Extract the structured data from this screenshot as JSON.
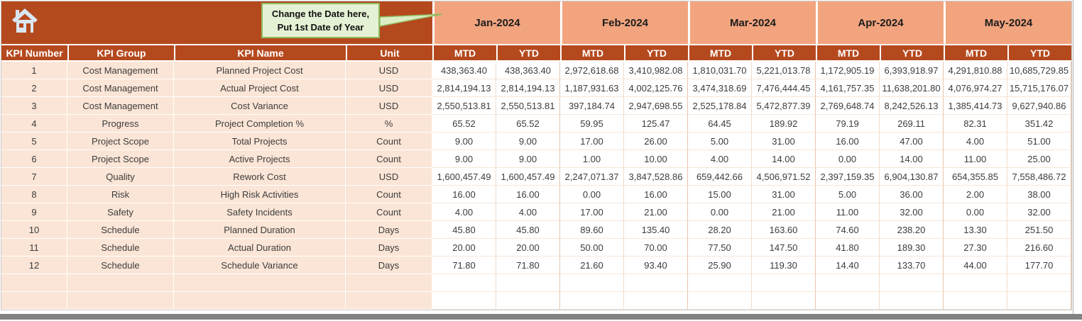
{
  "colors": {
    "header_rust": "#B5491E",
    "month_salmon": "#F2A47E",
    "row_peach": "#FBE5D6",
    "callout_bg": "#E5F1D4",
    "callout_border": "#8FBB60",
    "chrome_gray": "#828282"
  },
  "callout": {
    "line1": "Change the Date here,",
    "line2": "Put 1st Date of Year"
  },
  "table": {
    "left_headers": [
      "KPI Number",
      "KPI Group",
      "KPI Name",
      "Unit"
    ],
    "months": [
      "Jan-2024",
      "Feb-2024",
      "Mar-2024",
      "Apr-2024",
      "May-2024"
    ],
    "sub_headers": [
      "MTD",
      "YTD"
    ],
    "empty_row_count": 2,
    "rows": [
      {
        "number": "1",
        "group": "Cost Management",
        "name": "Planned Project Cost",
        "unit": "USD",
        "values": [
          "438,363.40",
          "438,363.40",
          "2,972,618.68",
          "3,410,982.08",
          "1,810,031.70",
          "5,221,013.78",
          "1,172,905.19",
          "6,393,918.97",
          "4,291,810.88",
          "10,685,729.85"
        ]
      },
      {
        "number": "2",
        "group": "Cost Management",
        "name": "Actual Project Cost",
        "unit": "USD",
        "values": [
          "2,814,194.13",
          "2,814,194.13",
          "1,187,931.63",
          "4,002,125.76",
          "3,474,318.69",
          "7,476,444.45",
          "4,161,757.35",
          "11,638,201.80",
          "4,076,974.27",
          "15,715,176.07"
        ]
      },
      {
        "number": "3",
        "group": "Cost Management",
        "name": "Cost Variance",
        "unit": "USD",
        "values": [
          "2,550,513.81",
          "2,550,513.81",
          "397,184.74",
          "2,947,698.55",
          "2,525,178.84",
          "5,472,877.39",
          "2,769,648.74",
          "8,242,526.13",
          "1,385,414.73",
          "9,627,940.86"
        ]
      },
      {
        "number": "4",
        "group": "Progress",
        "name": "Project Completion %",
        "unit": "%",
        "values": [
          "65.52",
          "65.52",
          "59.95",
          "125.47",
          "64.45",
          "189.92",
          "79.19",
          "269.11",
          "82.31",
          "351.42"
        ]
      },
      {
        "number": "5",
        "group": "Project Scope",
        "name": "Total Projects",
        "unit": "Count",
        "values": [
          "9.00",
          "9.00",
          "17.00",
          "26.00",
          "5.00",
          "31.00",
          "16.00",
          "47.00",
          "4.00",
          "51.00"
        ]
      },
      {
        "number": "6",
        "group": "Project Scope",
        "name": "Active Projects",
        "unit": "Count",
        "values": [
          "9.00",
          "9.00",
          "1.00",
          "10.00",
          "4.00",
          "14.00",
          "0.00",
          "14.00",
          "11.00",
          "25.00"
        ]
      },
      {
        "number": "7",
        "group": "Quality",
        "name": "Rework Cost",
        "unit": "USD",
        "values": [
          "1,600,457.49",
          "1,600,457.49",
          "2,247,071.37",
          "3,847,528.86",
          "659,442.66",
          "4,506,971.52",
          "2,397,159.35",
          "6,904,130.87",
          "654,355.85",
          "7,558,486.72"
        ]
      },
      {
        "number": "8",
        "group": "Risk",
        "name": "High Risk Activities",
        "unit": "Count",
        "values": [
          "16.00",
          "16.00",
          "0.00",
          "16.00",
          "15.00",
          "31.00",
          "5.00",
          "36.00",
          "2.00",
          "38.00"
        ]
      },
      {
        "number": "9",
        "group": "Safety",
        "name": "Safety Incidents",
        "unit": "Count",
        "values": [
          "4.00",
          "4.00",
          "17.00",
          "21.00",
          "0.00",
          "21.00",
          "11.00",
          "32.00",
          "0.00",
          "32.00"
        ]
      },
      {
        "number": "10",
        "group": "Schedule",
        "name": "Planned Duration",
        "unit": "Days",
        "values": [
          "45.80",
          "45.80",
          "89.60",
          "135.40",
          "28.20",
          "163.60",
          "74.60",
          "238.20",
          "13.30",
          "251.50"
        ]
      },
      {
        "number": "11",
        "group": "Schedule",
        "name": "Actual Duration",
        "unit": "Days",
        "values": [
          "20.00",
          "20.00",
          "50.00",
          "70.00",
          "77.50",
          "147.50",
          "41.80",
          "189.30",
          "27.30",
          "216.60"
        ]
      },
      {
        "number": "12",
        "group": "Schedule",
        "name": "Schedule Variance",
        "unit": "Days",
        "values": [
          "71.80",
          "71.80",
          "21.60",
          "93.40",
          "25.90",
          "119.30",
          "14.40",
          "133.70",
          "44.00",
          "177.70"
        ]
      }
    ]
  }
}
